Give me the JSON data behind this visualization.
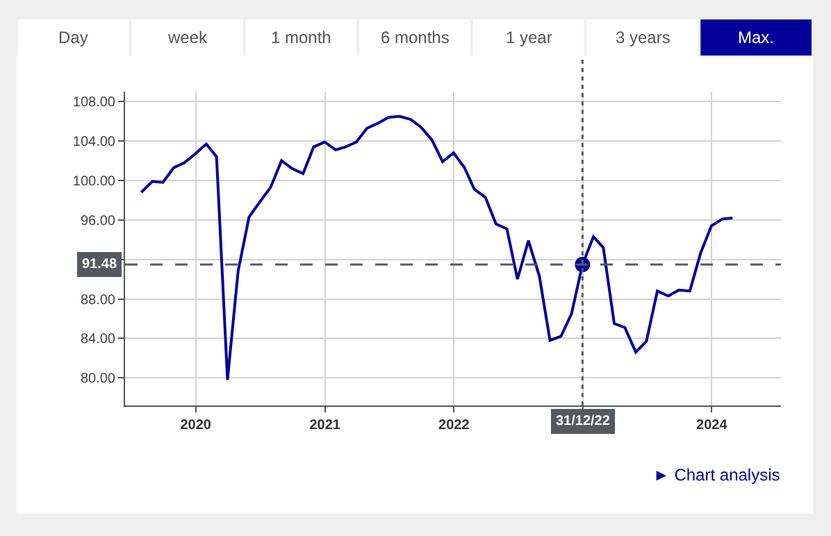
{
  "chart_data": {
    "type": "line",
    "annotations": [
      "Day",
      "week",
      "1 month",
      "6 months",
      "1 year",
      "3 years",
      "Max.",
      "► Chart analysis"
    ],
    "x": [
      "2019-07-31",
      "2019-08-31",
      "2019-09-30",
      "2019-10-31",
      "2019-11-30",
      "2019-12-31",
      "2020-01-31",
      "2020-02-29",
      "2020-03-31",
      "2020-04-30",
      "2020-05-31",
      "2020-06-30",
      "2020-07-31",
      "2020-08-31",
      "2020-09-30",
      "2020-10-31",
      "2020-11-30",
      "2020-12-31",
      "2021-01-31",
      "2021-02-28",
      "2021-03-31",
      "2021-04-30",
      "2021-05-31",
      "2021-06-30",
      "2021-07-31",
      "2021-08-31",
      "2021-09-30",
      "2021-10-31",
      "2021-11-30",
      "2021-12-31",
      "2022-01-31",
      "2022-02-28",
      "2022-03-31",
      "2022-04-30",
      "2022-05-31",
      "2022-06-30",
      "2022-07-31",
      "2022-08-31",
      "2022-09-30",
      "2022-10-31",
      "2022-11-30",
      "2022-12-31",
      "2023-01-31",
      "2023-02-28",
      "2023-03-31",
      "2023-04-30",
      "2023-05-31",
      "2023-06-30",
      "2023-07-31",
      "2023-08-31",
      "2023-09-30",
      "2023-10-31",
      "2023-11-30",
      "2023-12-31",
      "2024-01-31",
      "2024-02-29"
    ],
    "series": [
      {
        "color": "#000099",
        "values": [
          98.8,
          99.9,
          99.8,
          101.3,
          101.8,
          102.7,
          103.7,
          102.4,
          79.8,
          90.8,
          96.3,
          97.8,
          99.3,
          102.0,
          101.2,
          100.7,
          103.4,
          103.9,
          103.1,
          103.4,
          103.9,
          105.3,
          105.8,
          106.4,
          106.5,
          106.2,
          105.4,
          104.1,
          101.9,
          102.8,
          101.3,
          99.1,
          98.3,
          95.6,
          95.1,
          90.0,
          93.9,
          90.3,
          83.8,
          84.2,
          86.5,
          91.48,
          94.3,
          93.2,
          85.5,
          85.1,
          82.6,
          83.7,
          88.8,
          88.3,
          88.9,
          88.8,
          92.6,
          95.4,
          96.1,
          96.2
        ]
      },
      {
        "type": "scatter",
        "marker": "circle",
        "color": "#000099",
        "x": [
          "2022-12-31"
        ],
        "values": [
          91.48
        ]
      }
    ],
    "xlim": [
      "2019-06-15",
      "2024-07-15"
    ],
    "xticks": [
      "2020",
      "2021",
      "2022",
      {
        "value": "2023",
        "label": null
      },
      "2024"
    ],
    "ylim": [
      77.2,
      109
    ],
    "yticks": [
      {
        "value": 80,
        "label": "80.00"
      },
      {
        "value": 84,
        "label": "84.00"
      },
      {
        "value": 88,
        "label": "88.00"
      },
      {
        "value": 92,
        "label": null
      },
      {
        "value": 96,
        "label": "96.00"
      },
      {
        "value": 100,
        "label": "100.00"
      },
      {
        "value": 104,
        "label": "104.00"
      },
      {
        "value": 108,
        "label": "108.00"
      }
    ],
    "ref_lines": [
      {
        "axis": "y",
        "value": 91.48,
        "label": "91.48",
        "color": "#555a60",
        "line_style": "dashed"
      },
      {
        "axis": "x",
        "value": "2022-12-31",
        "label": "31/12/22",
        "color": "#555a60",
        "line_style": "dotted"
      }
    ],
    "grid": true,
    "marker": "none",
    "line_style": "solid"
  }
}
